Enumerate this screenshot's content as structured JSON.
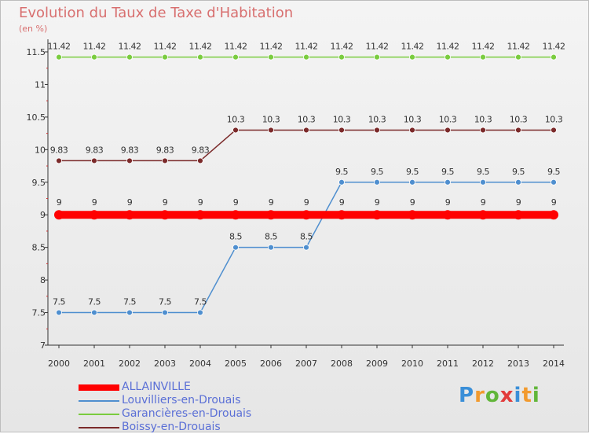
{
  "chart_data": {
    "type": "line",
    "title": "Evolution du Taux de Taxe d'Habitation",
    "ylabel": "(en %)",
    "xlabel": "",
    "ylim": [
      7,
      11.5
    ],
    "yticks": [
      "7",
      "7.5",
      "8",
      "8.5",
      "9",
      "9.5",
      "10",
      "10.5",
      "11",
      "11.5"
    ],
    "categories": [
      "2000",
      "2001",
      "2002",
      "2003",
      "2004",
      "2005",
      "2006",
      "2007",
      "2008",
      "2009",
      "2010",
      "2011",
      "2012",
      "2013",
      "2014"
    ],
    "series": [
      {
        "name": "ALLAINVILLE",
        "color": "#ff0000",
        "values": [
          9,
          9,
          9,
          9,
          9,
          9,
          9,
          9,
          9,
          9,
          9,
          9,
          9,
          9,
          9
        ],
        "labels": [
          "9",
          "9",
          "9",
          "9",
          "9",
          "9",
          "9",
          "9",
          "9",
          "9",
          "9",
          "9",
          "9",
          "9",
          "9"
        ]
      },
      {
        "name": "Louvilliers-en-Drouais",
        "color": "#4f8fcf",
        "values": [
          7.5,
          7.5,
          7.5,
          7.5,
          7.5,
          8.5,
          8.5,
          8.5,
          9.5,
          9.5,
          9.5,
          9.5,
          9.5,
          9.5,
          9.5
        ],
        "labels": [
          "7.5",
          "7.5",
          "7.5",
          "7.5",
          "7.5",
          "8.5",
          "8.5",
          "8.5",
          "9.5",
          "9.5",
          "9.5",
          "9.5",
          "9.5",
          "9.5",
          "9.5"
        ]
      },
      {
        "name": "Garancières-en-Drouais",
        "color": "#7acc3f",
        "values": [
          11.42,
          11.42,
          11.42,
          11.42,
          11.42,
          11.42,
          11.42,
          11.42,
          11.42,
          11.42,
          11.42,
          11.42,
          11.42,
          11.42,
          11.42
        ],
        "labels": [
          "11.42",
          "11.42",
          "11.42",
          "11.42",
          "11.42",
          "11.42",
          "11.42",
          "11.42",
          "11.42",
          "11.42",
          "11.42",
          "11.42",
          "11.42",
          "11.42",
          "11.42"
        ]
      },
      {
        "name": "Boissy-en-Drouais",
        "color": "#7b2a2a",
        "values": [
          9.83,
          9.83,
          9.83,
          9.83,
          9.83,
          10.3,
          10.3,
          10.3,
          10.3,
          10.3,
          10.3,
          10.3,
          10.3,
          10.3,
          10.3
        ],
        "labels": [
          "9.83",
          "9.83",
          "9.83",
          "9.83",
          "9.83",
          "10.3",
          "10.3",
          "10.3",
          "10.3",
          "10.3",
          "10.3",
          "10.3",
          "10.3",
          "10.3",
          "10.3"
        ]
      }
    ],
    "legend_position": "bottom-left"
  },
  "brand": {
    "letters": [
      "P",
      "r",
      "o",
      "x",
      "i",
      "t",
      "i"
    ],
    "colors": [
      "#3a8fd8",
      "#f29a2e",
      "#62b63a",
      "#e23b3b",
      "#3a8fd8",
      "#f29a2e",
      "#62b63a"
    ]
  }
}
